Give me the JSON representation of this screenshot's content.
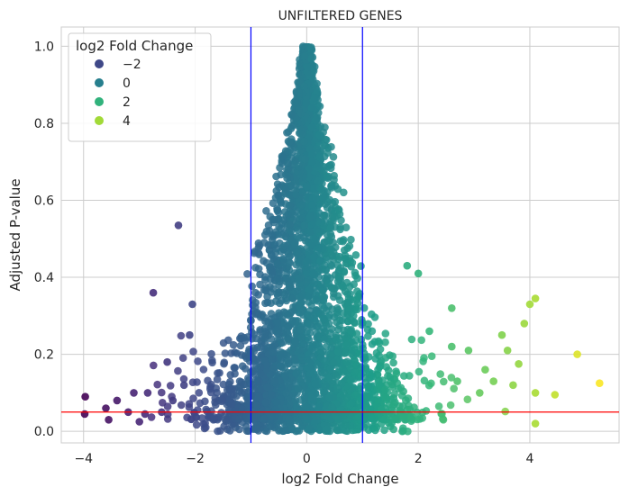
{
  "chart_data": {
    "type": "scatter",
    "title": "UNFILTERED GENES",
    "xlabel": "log2 Fold Change",
    "ylabel": "Adjusted P-value",
    "xlim": [
      -4.4,
      5.6
    ],
    "ylim": [
      -0.03,
      1.05
    ],
    "xticks": [
      -4,
      -2,
      0,
      2,
      4
    ],
    "xtick_labels": [
      "−4",
      "−2",
      "0",
      "2",
      "4"
    ],
    "yticks": [
      0.0,
      0.2,
      0.4,
      0.6,
      0.8,
      1.0
    ],
    "ytick_labels": [
      "0.0",
      "0.2",
      "0.4",
      "0.6",
      "0.8",
      "1.0"
    ],
    "grid": true,
    "colormap": "viridis",
    "color_range": [
      -4,
      5.3
    ],
    "vertical_lines": {
      "x": [
        -1,
        1
      ],
      "color": "#0000ff"
    },
    "horizontal_line": {
      "y": 0.05,
      "color": "#ff0000"
    },
    "legend": {
      "title": "log2 Fold Change",
      "placement": "top-left",
      "entries": [
        {
          "label": "−2",
          "value": -2
        },
        {
          "label": "0",
          "value": 0
        },
        {
          "label": "2",
          "value": 2
        },
        {
          "label": "4",
          "value": 4
        }
      ]
    },
    "outlier_points": [
      {
        "x": -3.97,
        "y": 0.09
      },
      {
        "x": -3.98,
        "y": 0.045
      },
      {
        "x": -3.6,
        "y": 0.06
      },
      {
        "x": -3.55,
        "y": 0.03
      },
      {
        "x": -3.4,
        "y": 0.08
      },
      {
        "x": -3.2,
        "y": 0.05
      },
      {
        "x": -3.1,
        "y": 0.1
      },
      {
        "x": -3.0,
        "y": 0.025
      },
      {
        "x": -2.9,
        "y": 0.045
      },
      {
        "x": -2.85,
        "y": 0.1
      },
      {
        "x": -2.75,
        "y": 0.36
      },
      {
        "x": -2.6,
        "y": 0.05
      },
      {
        "x": -2.5,
        "y": 0.18
      },
      {
        "x": -2.4,
        "y": 0.08
      },
      {
        "x": -2.3,
        "y": 0.535
      },
      {
        "x": -2.2,
        "y": 0.12
      },
      {
        "x": -2.1,
        "y": 0.25
      },
      {
        "x": -2.05,
        "y": 0.33
      },
      {
        "x": 1.8,
        "y": 0.43
      },
      {
        "x": 2.0,
        "y": 0.41
      },
      {
        "x": 2.2,
        "y": 0.26
      },
      {
        "x": 2.6,
        "y": 0.32
      },
      {
        "x": 2.6,
        "y": 0.22
      },
      {
        "x": 2.7,
        "y": 0.13
      },
      {
        "x": 2.9,
        "y": 0.21
      },
      {
        "x": 3.1,
        "y": 0.1
      },
      {
        "x": 3.2,
        "y": 0.16
      },
      {
        "x": 3.35,
        "y": 0.13
      },
      {
        "x": 3.5,
        "y": 0.25
      },
      {
        "x": 3.6,
        "y": 0.21
      },
      {
        "x": 3.7,
        "y": 0.12
      },
      {
        "x": 3.8,
        "y": 0.175
      },
      {
        "x": 3.9,
        "y": 0.28
      },
      {
        "x": 4.0,
        "y": 0.33
      },
      {
        "x": 4.1,
        "y": 0.345
      },
      {
        "x": 4.1,
        "y": 0.1
      },
      {
        "x": 4.1,
        "y": 0.02
      },
      {
        "x": 4.45,
        "y": 0.095
      },
      {
        "x": 4.85,
        "y": 0.2
      },
      {
        "x": 5.25,
        "y": 0.125
      }
    ]
  }
}
